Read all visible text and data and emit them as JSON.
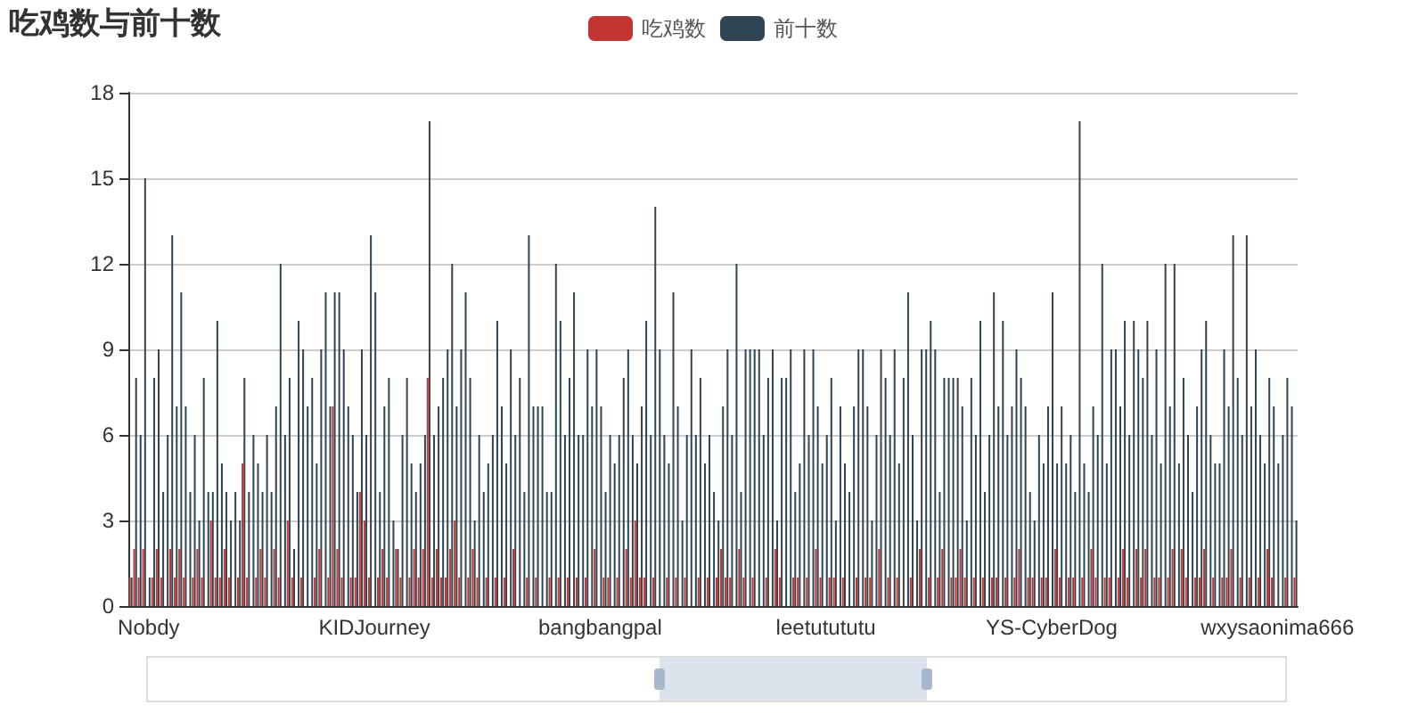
{
  "chart_data": {
    "type": "bar",
    "title": "吃鸡数与前十数",
    "legend": "top",
    "grid": "y",
    "ylim": [
      0,
      18
    ],
    "yticks": [
      0,
      3,
      6,
      9,
      12,
      15,
      18
    ],
    "categories": [
      null,
      null,
      null,
      null,
      "Nobdy",
      null,
      null,
      null,
      null,
      null,
      null,
      null,
      null,
      null,
      null,
      null,
      null,
      null,
      null,
      null,
      null,
      null,
      null,
      null,
      null,
      null,
      null,
      null,
      null,
      null,
      null,
      null,
      null,
      null,
      null,
      null,
      null,
      null,
      null,
      null,
      null,
      null,
      null,
      null,
      null,
      null,
      null,
      null,
      null,
      null,
      null,
      null,
      null,
      null,
      "KIDJourney",
      null,
      null,
      null,
      null,
      null,
      null,
      null,
      null,
      null,
      null,
      null,
      null,
      null,
      null,
      null,
      null,
      null,
      null,
      null,
      null,
      null,
      null,
      null,
      null,
      null,
      null,
      null,
      null,
      null,
      null,
      null,
      null,
      null,
      null,
      null,
      null,
      null,
      null,
      null,
      null,
      null,
      null,
      null,
      null,
      null,
      null,
      null,
      null,
      null,
      "bangbangpal",
      null,
      null,
      null,
      null,
      null,
      null,
      null,
      null,
      null,
      null,
      null,
      null,
      null,
      null,
      null,
      null,
      null,
      null,
      null,
      null,
      null,
      null,
      null,
      null,
      null,
      null,
      null,
      null,
      null,
      null,
      null,
      null,
      null,
      null,
      null,
      null,
      null,
      null,
      null,
      null,
      null,
      null,
      null,
      null,
      null,
      null,
      null,
      null,
      null,
      "leetutututu",
      null,
      null,
      null,
      null,
      null,
      null,
      null,
      null,
      null,
      null,
      null,
      null,
      null,
      null,
      null,
      null,
      null,
      null,
      null,
      null,
      null,
      null,
      null,
      null,
      null,
      null,
      null,
      null,
      null,
      null,
      null,
      null,
      null,
      null,
      null,
      null,
      null,
      null,
      null,
      null,
      null,
      null,
      null,
      null,
      null,
      null,
      null,
      null,
      null,
      "YS-CyberDog",
      null,
      null,
      null,
      null,
      null,
      null,
      null,
      null,
      null,
      null,
      null,
      null,
      null,
      null,
      null,
      null,
      null,
      null,
      null,
      null,
      null,
      null,
      null,
      null,
      null,
      null,
      null,
      null,
      null,
      null,
      null,
      null,
      null,
      null,
      null,
      null,
      null,
      null,
      null,
      null,
      null,
      null,
      null,
      null,
      null,
      null,
      null,
      null,
      null,
      "wxysaonima666",
      null,
      null,
      null,
      null
    ],
    "series": [
      {
        "name": "吃鸡数",
        "color": "#c23531",
        "values": [
          1,
          2,
          1,
          2,
          0,
          1,
          2,
          1,
          0,
          2,
          1,
          2,
          1,
          0,
          1,
          2,
          1,
          0,
          3,
          1,
          1,
          2,
          1,
          0,
          1,
          5,
          1,
          0,
          1,
          2,
          1,
          0,
          2,
          1,
          0,
          3,
          1,
          0,
          1,
          0,
          0,
          1,
          2,
          0,
          1,
          7,
          2,
          1,
          0,
          1,
          1,
          4,
          3,
          1,
          0,
          1,
          2,
          1,
          0,
          2,
          1,
          0,
          1,
          2,
          1,
          2,
          8,
          1,
          2,
          1,
          1,
          2,
          3,
          1,
          0,
          1,
          2,
          1,
          0,
          1,
          0,
          1,
          0,
          1,
          0,
          2,
          0,
          0,
          1,
          0,
          1,
          0,
          0,
          1,
          0,
          1,
          0,
          1,
          0,
          1,
          0,
          1,
          0,
          2,
          0,
          1,
          1,
          0,
          1,
          0,
          2,
          1,
          3,
          1,
          1,
          0,
          1,
          0,
          0,
          1,
          0,
          1,
          0,
          1,
          0,
          0,
          1,
          0,
          1,
          0,
          1,
          2,
          1,
          1,
          0,
          2,
          1,
          0,
          1,
          0,
          0,
          1,
          0,
          2,
          1,
          0,
          0,
          1,
          1,
          0,
          1,
          0,
          2,
          1,
          0,
          1,
          1,
          0,
          1,
          0,
          0,
          1,
          0,
          1,
          1,
          0,
          2,
          0,
          1,
          0,
          1,
          0,
          0,
          1,
          0,
          2,
          0,
          1,
          0,
          1,
          2,
          0,
          1,
          1,
          2,
          1,
          0,
          1,
          0,
          1,
          0,
          1,
          1,
          0,
          1,
          0,
          1,
          2,
          0,
          1,
          1,
          0,
          1,
          1,
          0,
          2,
          1,
          0,
          1,
          1,
          0,
          1,
          0,
          2,
          1,
          0,
          1,
          1,
          0,
          1,
          2,
          1,
          0,
          2,
          1,
          2,
          0,
          1,
          1,
          0,
          1,
          2,
          0,
          2,
          1,
          0,
          1,
          1,
          2,
          0,
          1,
          0,
          1,
          1,
          2,
          0,
          1,
          0,
          1,
          0,
          1,
          0,
          2,
          1,
          0,
          0,
          1,
          0,
          1
        ]
      },
      {
        "name": "前十数",
        "color": "#2f4554",
        "values": [
          1,
          8,
          6,
          15,
          1,
          8,
          9,
          4,
          6,
          13,
          7,
          11,
          7,
          4,
          6,
          3,
          8,
          4,
          4,
          10,
          5,
          4,
          3,
          4,
          3,
          8,
          4,
          6,
          5,
          4,
          6,
          4,
          7,
          12,
          6,
          8,
          2,
          10,
          9,
          7,
          8,
          5,
          9,
          11,
          7,
          11,
          11,
          9,
          7,
          6,
          4,
          9,
          6,
          13,
          11,
          4,
          7,
          8,
          3,
          2,
          6,
          8,
          5,
          4,
          5,
          6,
          17,
          6,
          7,
          8,
          9,
          12,
          7,
          9,
          11,
          8,
          3,
          6,
          4,
          5,
          6,
          10,
          7,
          5,
          9,
          6,
          8,
          4,
          13,
          7,
          7,
          7,
          4,
          4,
          12,
          10,
          6,
          8,
          11,
          6,
          6,
          9,
          7,
          9,
          7,
          4,
          6,
          5,
          6,
          8,
          9,
          6,
          5,
          7,
          10,
          6,
          14,
          9,
          6,
          5,
          11,
          7,
          3,
          6,
          9,
          6,
          8,
          5,
          6,
          4,
          3,
          7,
          9,
          6,
          12,
          4,
          9,
          9,
          9,
          9,
          6,
          8,
          9,
          3,
          8,
          8,
          9,
          4,
          5,
          9,
          6,
          9,
          7,
          5,
          6,
          8,
          3,
          7,
          5,
          4,
          7,
          9,
          9,
          7,
          3,
          6,
          9,
          8,
          6,
          9,
          5,
          8,
          11,
          6,
          3,
          9,
          9,
          10,
          9,
          4,
          8,
          8,
          8,
          8,
          7,
          3,
          8,
          6,
          10,
          4,
          6,
          11,
          7,
          10,
          6,
          7,
          9,
          8,
          7,
          4,
          3,
          6,
          5,
          7,
          11,
          5,
          7,
          5,
          6,
          4,
          17,
          5,
          4,
          7,
          6,
          12,
          5,
          9,
          9,
          7,
          10,
          6,
          10,
          9,
          8,
          10,
          6,
          9,
          5,
          12,
          7,
          12,
          5,
          8,
          6,
          4,
          7,
          9,
          10,
          6,
          5,
          5,
          9,
          7,
          13,
          8,
          6,
          13,
          7,
          9,
          6,
          5,
          8,
          7,
          5,
          6,
          8,
          7,
          3
        ]
      }
    ]
  }
}
